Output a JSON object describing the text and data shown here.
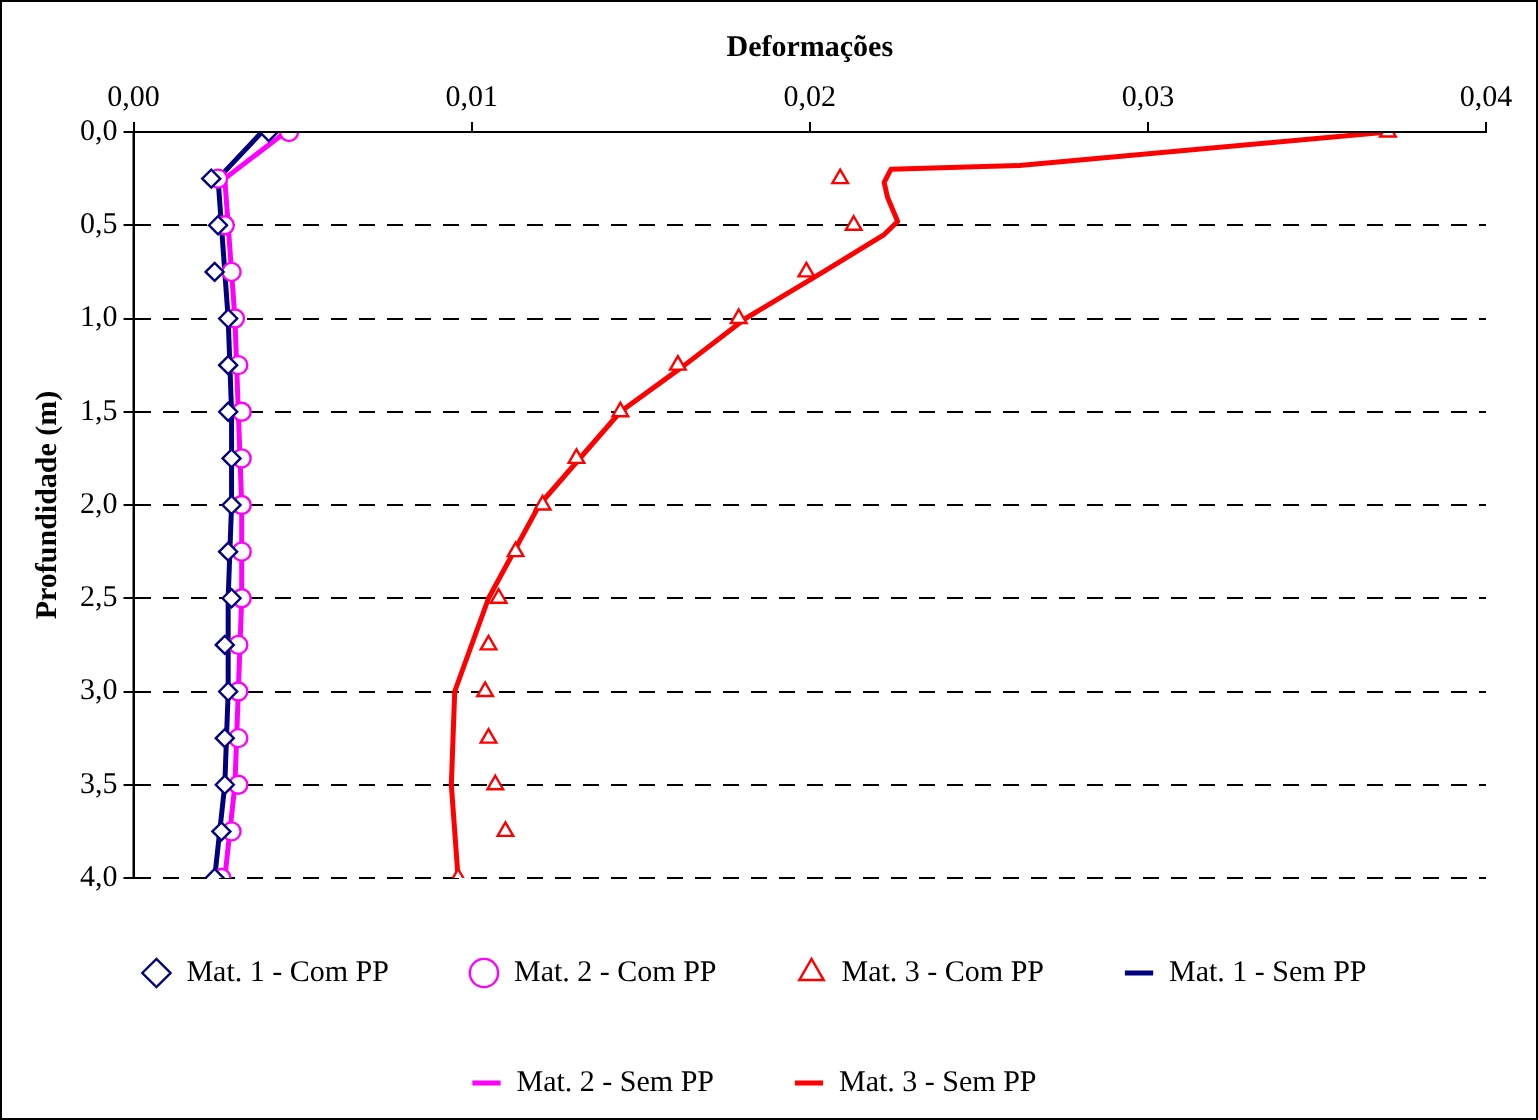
{
  "chart_data": {
    "type": "line",
    "xlabel": "Deformações",
    "ylabel": "Profundidade (m)",
    "xlim": [
      0,
      0.04
    ],
    "xticks": [
      {
        "value": 0,
        "label": "0,00"
      },
      {
        "value": 0.01,
        "label": "0,01"
      },
      {
        "value": 0.02,
        "label": "0,02"
      },
      {
        "value": 0.03,
        "label": "0,03"
      },
      {
        "value": 0.04,
        "label": "0,04"
      }
    ],
    "ylim": [
      4,
      0
    ],
    "yticks": [
      {
        "value": 0,
        "label": "0,0"
      },
      {
        "value": 0.5,
        "label": "0,5"
      },
      {
        "value": 1,
        "label": "1,0"
      },
      {
        "value": 1.5,
        "label": "1,5"
      },
      {
        "value": 2,
        "label": "2,0"
      },
      {
        "value": 2.5,
        "label": "2,5"
      },
      {
        "value": 3,
        "label": "3,0"
      },
      {
        "value": 3.5,
        "label": "3,5"
      },
      {
        "value": 4,
        "label": "4,0"
      }
    ],
    "grid": "y",
    "legend": "bottom",
    "series": [
      {
        "name": "Mat. 1 - Sem PP",
        "marker": "none",
        "color": "#000080",
        "x": [
          0.0038,
          0.0025,
          0.0026,
          0.0028,
          0.0029,
          0.0029,
          0.0028,
          0.0028,
          0.0027,
          0.0024
        ],
        "values": [
          0,
          0.25,
          0.5,
          1,
          1.5,
          2,
          2.5,
          3,
          3.5,
          4
        ]
      },
      {
        "name": "Mat. 1 - Com PP",
        "type": "scatter",
        "marker": "diamond",
        "color": "#000080",
        "x": [
          0.004,
          0.0023,
          0.0025,
          0.0024,
          0.0028,
          0.0028,
          0.0028,
          0.0029,
          0.0029,
          0.0028,
          0.0029,
          0.0027,
          0.0028,
          0.0027,
          0.0027,
          0.0026,
          0.0024
        ],
        "values": [
          0,
          0.25,
          0.5,
          0.75,
          1,
          1.25,
          1.5,
          1.75,
          2,
          2.25,
          2.5,
          2.75,
          3,
          3.25,
          3.5,
          3.75,
          4
        ]
      },
      {
        "name": "Mat. 2 - Sem PP",
        "marker": "none",
        "color": "#ff00ff",
        "x": [
          0.0045,
          0.0027,
          0.0028,
          0.003,
          0.0031,
          0.0032,
          0.0032,
          0.0031,
          0.003,
          0.0027
        ],
        "values": [
          0,
          0.25,
          0.5,
          1,
          1.5,
          2,
          2.5,
          3,
          3.5,
          4
        ]
      },
      {
        "name": "Mat. 2 - Com PP",
        "type": "scatter",
        "marker": "circle",
        "color": "#ff00ff",
        "x": [
          0.0046,
          0.0025,
          0.0027,
          0.0029,
          0.003,
          0.0031,
          0.0032,
          0.0032,
          0.0032,
          0.0032,
          0.0032,
          0.0031,
          0.0031,
          0.0031,
          0.0031,
          0.0029,
          0.0026
        ],
        "values": [
          0,
          0.25,
          0.5,
          0.75,
          1,
          1.25,
          1.5,
          1.75,
          2,
          2.25,
          2.5,
          2.75,
          3,
          3.25,
          3.5,
          3.75,
          4
        ]
      },
      {
        "name": "Mat. 3 - Sem PP",
        "marker": "none",
        "color": "#ff0000",
        "x": [
          0.0371,
          0.0262,
          0.0224,
          0.0222,
          0.0223,
          0.0226,
          0.0222,
          0.0204,
          0.0181,
          0.0163,
          0.0144,
          0.012,
          0.0105,
          0.0095,
          0.0094,
          0.0095,
          0.0096
        ],
        "values": [
          0,
          0.18,
          0.2,
          0.27,
          0.35,
          0.48,
          0.55,
          0.75,
          1,
          1.25,
          1.5,
          2,
          2.5,
          3,
          3.5,
          3.75,
          4
        ]
      },
      {
        "name": "Mat. 3 - Com PP",
        "type": "scatter",
        "marker": "triangle",
        "color": "#ff0000",
        "x": [
          0.0371,
          0.0209,
          0.0213,
          0.0199,
          0.0179,
          0.0161,
          0.0144,
          0.0131,
          0.0121,
          0.0113,
          0.0108,
          0.0105,
          0.0104,
          0.0105,
          0.0107,
          0.011,
          0.0096
        ],
        "values": [
          0,
          0.25,
          0.5,
          0.75,
          1,
          1.25,
          1.5,
          1.75,
          2,
          2.25,
          2.5,
          2.75,
          3,
          3.25,
          3.5,
          3.75,
          4
        ]
      }
    ]
  }
}
